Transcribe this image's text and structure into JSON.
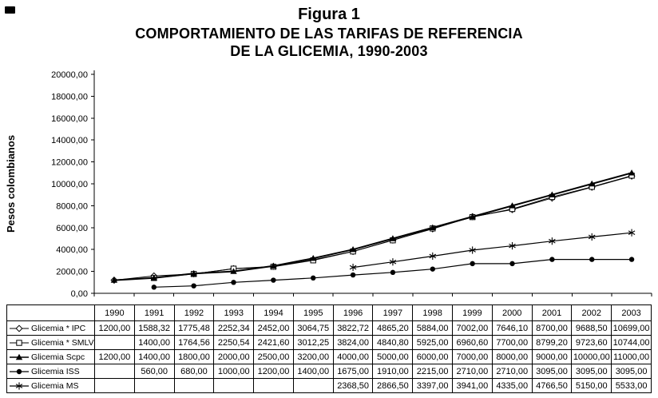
{
  "figure": {
    "label": "Figura 1",
    "title_line1": "COMPORTAMIENTO DE LAS TARIFAS DE REFERENCIA",
    "title_line2": "DE LA GLICEMIA, 1990-2003"
  },
  "chart_data": {
    "type": "line",
    "title": "Figura 1 - COMPORTAMIENTO DE LAS TARIFAS DE REFERENCIA DE LA GLICEMIA, 1990-2003",
    "xlabel": "",
    "ylabel": "Pesos colombianos",
    "ylim": [
      0,
      20000
    ],
    "ytick_step": 2000,
    "grid": false,
    "legend_position": "table-left-column",
    "value_format": "decimal-comma-2",
    "categories": [
      "1990",
      "1991",
      "1992",
      "1993",
      "1994",
      "1995",
      "1996",
      "1997",
      "1998",
      "1999",
      "2000",
      "2001",
      "2002",
      "2003"
    ],
    "series": [
      {
        "name": "Glicemia * IPC",
        "marker": "open-diamond",
        "line_width": 1,
        "values": [
          1200.0,
          1588.32,
          1775.48,
          2252.34,
          2452.0,
          3064.75,
          3822.72,
          4865.2,
          5884.0,
          7002.0,
          7646.1,
          8700.0,
          9688.5,
          10699.0
        ]
      },
      {
        "name": "Glicemia * SMLV",
        "marker": "open-square",
        "line_width": 1,
        "values": [
          null,
          1400.0,
          1764.56,
          2250.54,
          2421.6,
          3012.25,
          3824.0,
          4840.8,
          5925.0,
          6960.6,
          7700.0,
          8799.2,
          9723.6,
          10744.0
        ]
      },
      {
        "name": "Glicemia Scpc",
        "marker": "filled-triangle",
        "line_width": 2,
        "values": [
          1200.0,
          1400.0,
          1800.0,
          2000.0,
          2500.0,
          3200.0,
          4000.0,
          5000.0,
          6000.0,
          7000.0,
          8000.0,
          9000.0,
          10000.0,
          11000.0
        ]
      },
      {
        "name": "Glicemia ISS",
        "marker": "filled-circle",
        "line_width": 1.2,
        "values": [
          null,
          560.0,
          680.0,
          1000.0,
          1200.0,
          1400.0,
          1675.0,
          1910.0,
          2215.0,
          2710.0,
          2710.0,
          3095.0,
          3095.0,
          3095.0
        ]
      },
      {
        "name": "Glicemia MS",
        "marker": "asterisk",
        "line_width": 1.2,
        "values": [
          null,
          null,
          null,
          null,
          null,
          null,
          2368.5,
          2866.5,
          3397.0,
          3941.0,
          4335.0,
          4766.5,
          5150.0,
          5533.0
        ]
      }
    ]
  }
}
